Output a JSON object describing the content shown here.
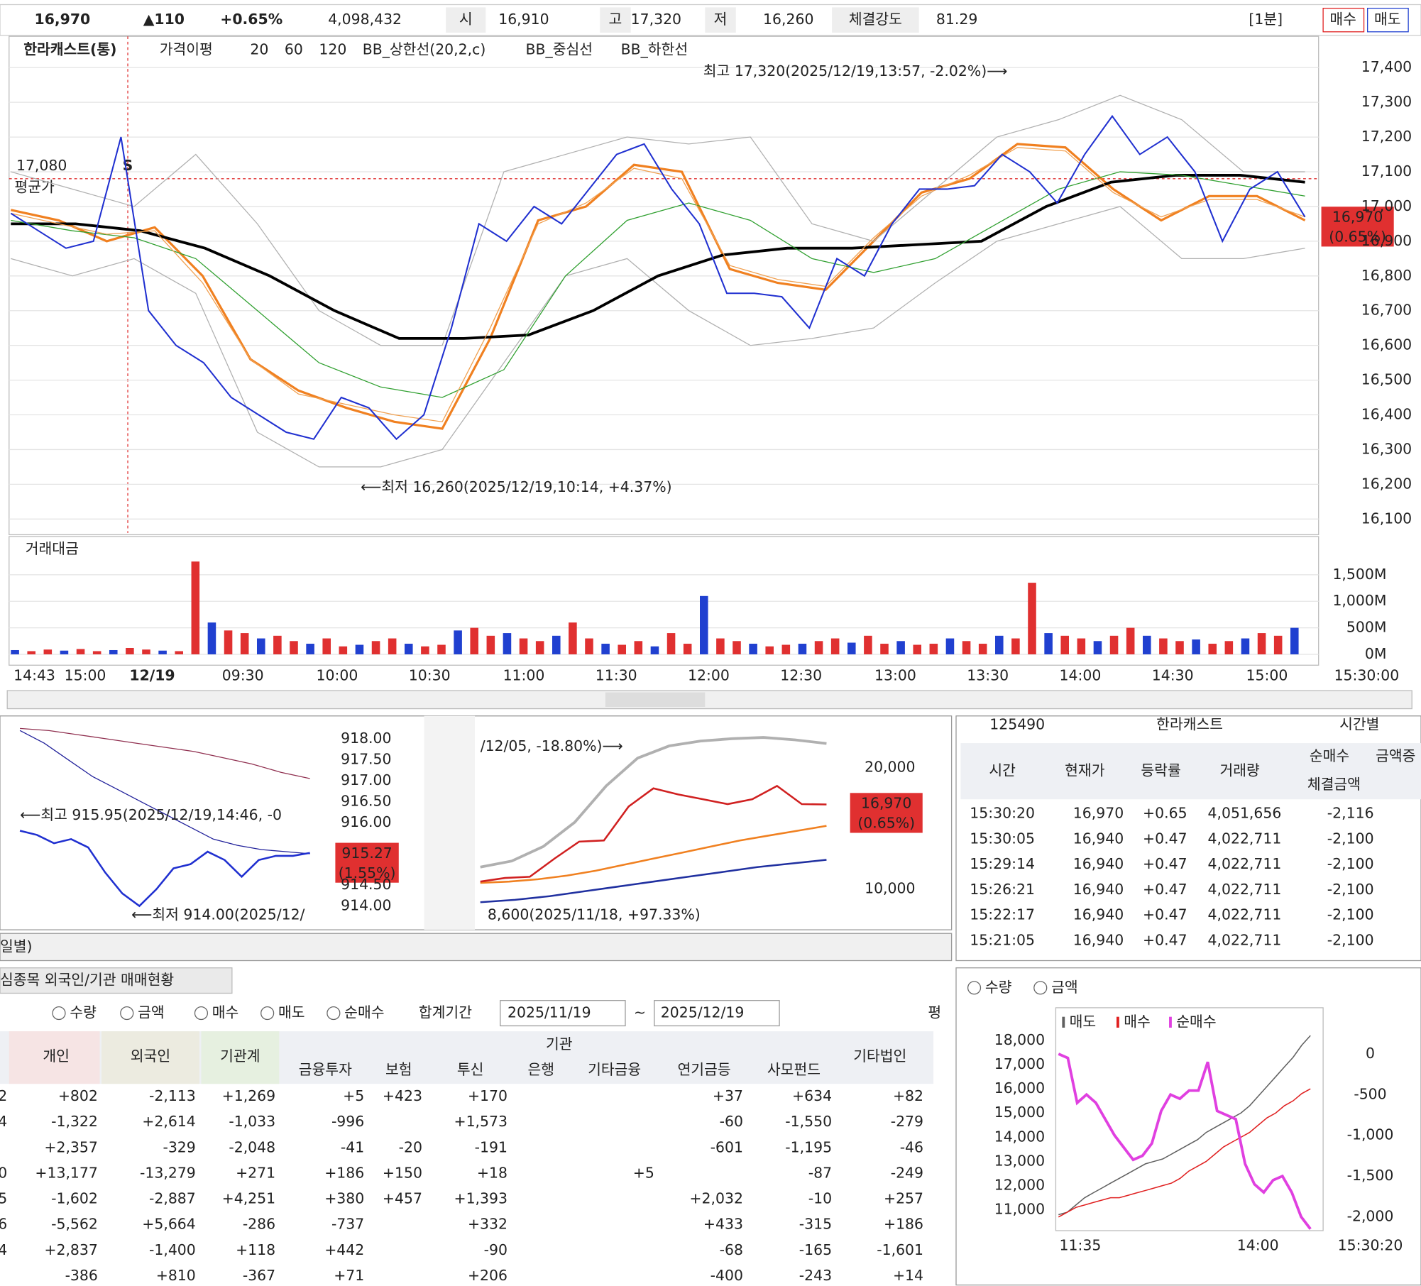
{
  "header": {
    "price": "16,970",
    "change": "▲110",
    "change_pct": "+0.65%",
    "volume": "4,098,432",
    "open_label": "시",
    "open": "16,910",
    "high_label": "고",
    "high": "17,320",
    "low_label": "저",
    "low": "16,260",
    "strength_label": "체결강도",
    "strength": "81.29",
    "interval": "[1분]",
    "buy": "매수",
    "sell": "매도"
  },
  "chart_data": [
    {
      "type": "line",
      "title": "한라캐스트(통)",
      "legend_title": "가격이평",
      "series": [
        {
          "name": "한라캐스트(통)",
          "color": "#2030d0",
          "values": [
            16980,
            16930,
            16880,
            16900,
            17200,
            16700,
            16600,
            16550,
            16450,
            16400,
            16350,
            16330,
            16450,
            16420,
            16330,
            16400,
            16650,
            16950,
            16900,
            17000,
            16950,
            17050,
            17150,
            17180,
            17050,
            16950,
            16750,
            16750,
            16740,
            16650,
            16850,
            16800,
            16950,
            17050,
            17050,
            17060,
            17150,
            17100,
            17010,
            17150,
            17260,
            17150,
            17200,
            17100,
            16900,
            17050,
            17100,
            16970
          ]
        },
        {
          "name": "20",
          "color": "#f08020",
          "values": [
            16990,
            16960,
            16900,
            16940,
            16800,
            16560,
            16470,
            16420,
            16380,
            16360,
            16620,
            16960,
            17000,
            17120,
            17100,
            16820,
            16780,
            16760,
            16900,
            17040,
            17080,
            17180,
            17170,
            17050,
            16960,
            17030,
            17030,
            16960
          ]
        },
        {
          "name": "60",
          "color": "#30a030",
          "values": [
            16960,
            16930,
            16910,
            16850,
            16700,
            16550,
            16480,
            16450,
            16530,
            16800,
            16960,
            17010,
            16960,
            16850,
            16810,
            16850,
            16950,
            17050,
            17100,
            17090,
            17060,
            17030
          ]
        },
        {
          "name": "120",
          "color": "#000000",
          "values": [
            16950,
            16950,
            16930,
            16880,
            16800,
            16700,
            16620,
            16620,
            16630,
            16700,
            16800,
            16860,
            16880,
            16880,
            16890,
            16900,
            17000,
            17070,
            17090,
            17090,
            17070
          ]
        },
        {
          "name": "BB_상한선(20,2,c)",
          "color": "#b0b0b0",
          "values": [
            17100,
            17050,
            17000,
            17150,
            16950,
            16700,
            16600,
            16600,
            17100,
            17150,
            17200,
            17180,
            17200,
            16950,
            16900,
            17050,
            17200,
            17250,
            17320,
            17250,
            17100,
            17100
          ]
        },
        {
          "name": "BB_중심선",
          "color": "#f0a050",
          "values": [
            16980,
            16950,
            16920,
            16930,
            16780,
            16560,
            16460,
            16430,
            16400,
            16380,
            16650,
            16950,
            17010,
            17110,
            17080,
            16830,
            16790,
            16770,
            16910,
            17030,
            17090,
            17170,
            17160,
            17040,
            16970,
            17020,
            17020,
            16970
          ]
        },
        {
          "name": "BB_하한선",
          "color": "#b0b0b0",
          "values": [
            16850,
            16800,
            16850,
            16750,
            16350,
            16250,
            16250,
            16300,
            16550,
            16800,
            16850,
            16700,
            16600,
            16620,
            16650,
            16780,
            16900,
            16950,
            17000,
            16850,
            16850,
            16880
          ]
        }
      ],
      "ylim": [
        16060,
        17490
      ],
      "yticks": [
        {
          "value": 16100,
          "label": "16,100"
        },
        {
          "value": 16200,
          "label": "16,200"
        },
        {
          "value": 16300,
          "label": "16,300"
        },
        {
          "value": 16400,
          "label": "16,400"
        },
        {
          "value": 16500,
          "label": "16,500"
        },
        {
          "value": 16600,
          "label": "16,600"
        },
        {
          "value": 16700,
          "label": "16,700"
        },
        {
          "value": 16800,
          "label": "16,800"
        },
        {
          "value": 16900,
          "label": "16,900"
        },
        {
          "value": 17000,
          "label": "17,000"
        },
        {
          "value": 17100,
          "label": "17,100"
        },
        {
          "value": 17200,
          "label": "17,200"
        },
        {
          "value": 17300,
          "label": "17,300"
        },
        {
          "value": 17400,
          "label": "17,400"
        }
      ],
      "avg_price": {
        "value": 17080,
        "label": "17,080"
      },
      "avg_label": "평균가",
      "signal": "S",
      "high_note": "최고 17,320(2025/12/19,13:57, -2.02%)⟶",
      "low_note": "⟵최저 16,260(2025/12/19,10:14, +4.37%)",
      "last_tag": "16,970",
      "last_tag_pct": "(0.65%)",
      "grid": true
    },
    {
      "type": "bar",
      "title": "거래대금",
      "color": "#e03030",
      "values": [
        80,
        60,
        90,
        70,
        100,
        60,
        80,
        120,
        90,
        70,
        60,
        1750,
        600,
        450,
        400,
        300,
        350,
        250,
        200,
        300,
        150,
        180,
        250,
        300,
        200,
        150,
        180,
        450,
        500,
        350,
        400,
        300,
        250,
        350,
        600,
        300,
        200,
        180,
        250,
        150,
        400,
        200,
        1100,
        300,
        250,
        200,
        150,
        180,
        200,
        250,
        300,
        220,
        350,
        200,
        250,
        180,
        200,
        300,
        250,
        200,
        350,
        300,
        1350,
        400,
        350,
        300,
        250,
        350,
        500,
        350,
        300,
        250,
        280,
        200,
        250,
        300,
        400,
        350,
        500
      ],
      "ylim": [
        0,
        1880
      ],
      "yticks": [
        {
          "value": 0,
          "label": "0M"
        },
        {
          "value": 500,
          "label": "500M"
        },
        {
          "value": 1000,
          "label": "1,000M"
        },
        {
          "value": 1500,
          "label": "1,500M"
        }
      ],
      "x_labels": [
        "14:43",
        "15:00",
        "12/19",
        "09:30",
        "10:00",
        "10:30",
        "11:00",
        "11:30",
        "12:00",
        "12:30",
        "13:00",
        "13:30",
        "14:00",
        "14:30",
        "15:00",
        "15:30:00"
      ]
    },
    {
      "type": "line",
      "series": [
        {
          "color": "#20209a",
          "values": [
            918.2,
            917.9,
            917.5,
            917.1,
            916.8,
            916.5,
            916.2,
            915.9,
            915.6,
            915.45,
            915.35,
            915.3,
            915.25
          ]
        },
        {
          "color": "#903050",
          "values": [
            918.25,
            918.2,
            918.1,
            918.0,
            917.9,
            917.8,
            917.7,
            917.55,
            917.4,
            917.2,
            917.05
          ]
        },
        {
          "color": "#2030d0",
          "values": [
            915.8,
            915.7,
            915.5,
            915.6,
            915.4,
            914.8,
            914.3,
            914.0,
            914.4,
            914.9,
            915.0,
            915.3,
            915.1,
            914.7,
            915.1,
            915.2,
            915.2,
            915.27
          ]
        }
      ],
      "ylim": [
        913.45,
        918.55
      ],
      "yticks": [
        {
          "value": 914,
          "label": "914.00"
        },
        {
          "value": 914.5,
          "label": "914.50"
        },
        {
          "value": 916,
          "label": "916.00"
        },
        {
          "value": 916.5,
          "label": "916.50"
        },
        {
          "value": 917,
          "label": "917.00"
        },
        {
          "value": 917.5,
          "label": "917.50"
        },
        {
          "value": 918,
          "label": "918.00"
        }
      ],
      "high_note": "⟵최고 915.95(2025/12/19,14:46, -0",
      "low_note": "⟵최저 914.00(2025/12/",
      "last_tag": "915.27",
      "last_tag_pct": "(1.55%)"
    },
    {
      "type": "line",
      "series": [
        {
          "color": "#d02020",
          "values": [
            10600,
            10900,
            11000,
            12500,
            13900,
            14000,
            16800,
            18300,
            17800,
            17400,
            17000,
            17400,
            18500,
            17000,
            16970
          ]
        },
        {
          "color": "#f08020",
          "values": [
            10500,
            10600,
            10800,
            11100,
            11500,
            12000,
            12500,
            13000,
            13500,
            14000,
            14400,
            14800,
            15200
          ]
        },
        {
          "color": "#2030a0",
          "values": [
            8900,
            9100,
            9400,
            9800,
            10200,
            10600,
            11000,
            11400,
            11800,
            12100,
            12400
          ]
        },
        {
          "color": "#b0b0b0",
          "values": [
            11800,
            12300,
            13500,
            15500,
            18500,
            20800,
            21800,
            22200,
            22400,
            22500,
            22300,
            22000
          ]
        }
      ],
      "ylim": [
        6700,
        23900
      ],
      "yticks": [
        {
          "value": 10000,
          "label": "10,000"
        },
        {
          "value": 20000,
          "label": "20,000"
        }
      ],
      "high_note": "/12/05, -18.80%)⟶",
      "low_note": "8,600(2025/11/18, +97.33%)",
      "last_tag": "16,970",
      "last_tag_pct": "(0.65%)"
    },
    {
      "type": "line",
      "series": [
        {
          "name": "매도",
          "color": "#606060",
          "values": [
            10800,
            10900,
            11200,
            11500,
            11700,
            11900,
            12100,
            12300,
            12500,
            12700,
            12900,
            13000,
            13100,
            13300,
            13500,
            13700,
            13900,
            14200,
            14400,
            14600,
            14800,
            15000,
            15300,
            15700,
            16100,
            16500,
            16900,
            17300,
            17800,
            18200
          ]
        },
        {
          "name": "매수",
          "color": "#e02020",
          "values": [
            10700,
            10900,
            11100,
            11200,
            11300,
            11400,
            11500,
            11500,
            11600,
            11700,
            11800,
            11900,
            12000,
            12100,
            12300,
            12600,
            12800,
            13000,
            13300,
            13600,
            13800,
            14000,
            14200,
            14500,
            14800,
            15000,
            15300,
            15500,
            15800,
            16000
          ]
        },
        {
          "name": "순매수",
          "color": "#e040e0",
          "axis": "y2",
          "values": [
            0,
            -50,
            -600,
            -500,
            -600,
            -800,
            -1000,
            -1150,
            -1300,
            -1250,
            -1100,
            -700,
            -500,
            -550,
            -450,
            -450,
            -100,
            -700,
            -750,
            -800,
            -1350,
            -1600,
            -1700,
            -1550,
            -1500,
            -1700,
            -2000,
            -2150
          ]
        }
      ],
      "ylim": [
        10140,
        19350
      ],
      "yticks": [
        {
          "value": 11000,
          "label": "11,000"
        },
        {
          "value": 12000,
          "label": "12,000"
        },
        {
          "value": 13000,
          "label": "13,000"
        },
        {
          "value": 14000,
          "label": "14,000"
        },
        {
          "value": 15000,
          "label": "15,000"
        },
        {
          "value": 16000,
          "label": "16,000"
        },
        {
          "value": 17000,
          "label": "17,000"
        },
        {
          "value": 18000,
          "label": "18,000"
        }
      ],
      "y2lim": [
        -2170,
        567
      ],
      "y2ticks": [
        0,
        -500,
        {
          "value": -1000,
          "label": "-1,000"
        },
        {
          "value": -1500,
          "label": "-1,500"
        },
        {
          "value": -2000,
          "label": "-2,000"
        }
      ],
      "x_labels": [
        "11:35",
        "14:00",
        "15:30:20"
      ],
      "radios": [
        "수량",
        "금액"
      ]
    }
  ],
  "tick_panel": {
    "code": "125490",
    "name": "한라캐스트",
    "mode": "시간별",
    "headers": [
      "시간",
      "현재가",
      "등락률",
      "거래량",
      "순매수",
      "체결금액",
      "금액증"
    ],
    "rows": [
      [
        "15:30:20",
        "16,970",
        "+0.65",
        "4,051,656",
        "-2,116"
      ],
      [
        "15:30:05",
        "16,940",
        "+0.47",
        "4,022,711",
        "-2,100"
      ],
      [
        "15:29:14",
        "16,940",
        "+0.47",
        "4,022,711",
        "-2,100"
      ],
      [
        "15:26:21",
        "16,940",
        "+0.47",
        "4,022,711",
        "-2,100"
      ],
      [
        "15:22:17",
        "16,940",
        "+0.47",
        "4,022,711",
        "-2,100"
      ],
      [
        "15:21:05",
        "16,940",
        "+0.47",
        "4,022,711",
        "-2,100"
      ]
    ]
  },
  "investor_panel": {
    "title": "일별)",
    "tab": "심종목 외국인/기관 매매현황",
    "radios": [
      "수량",
      "금액",
      "매수",
      "매도",
      "순매수"
    ],
    "period_label": "합계기간",
    "from": "2025/11/19",
    "tilde": "~",
    "to": "2025/12/19",
    "check": "평",
    "headers": [
      "개인",
      "외국인",
      "기관계",
      "기관",
      "금융투자",
      "보험",
      "투신",
      "은행",
      "기타금융",
      "연기금등",
      "사모펀드",
      "기타법인"
    ],
    "rows": [
      [
        "2",
        "+802",
        "-2,113",
        "+1,269",
        "+5",
        "+423",
        "+170",
        null,
        null,
        "+37",
        "+634",
        "+82"
      ],
      [
        "4",
        "-1,322",
        "+2,614",
        "-1,033",
        "-996",
        null,
        "+1,573",
        null,
        null,
        "-60",
        "-1,550",
        "-279"
      ],
      [
        null,
        "+2,357",
        "-329",
        "-2,048",
        "-41",
        "-20",
        "-191",
        null,
        null,
        "-601",
        "-1,195",
        "-46"
      ],
      [
        "0",
        "+13,177",
        "-13,279",
        "+271",
        "+186",
        "+150",
        "+18",
        null,
        "+5",
        null,
        "-87",
        "-249"
      ],
      [
        "5",
        "-1,602",
        "-2,887",
        "+4,251",
        "+380",
        "+457",
        "+1,393",
        null,
        null,
        "+2,032",
        "-10",
        "+257"
      ],
      [
        "6",
        "-5,562",
        "+5,664",
        "-286",
        "-737",
        null,
        "+332",
        null,
        null,
        "+433",
        "-315",
        "+186"
      ],
      [
        "4",
        "+2,837",
        "-1,400",
        "+118",
        "+442",
        null,
        "-90",
        null,
        null,
        "-68",
        "-165",
        "-1,601"
      ],
      [
        null,
        "-386",
        "+810",
        "-367",
        "+71",
        null,
        "+206",
        null,
        null,
        "-400",
        "-243",
        "+14"
      ]
    ]
  }
}
